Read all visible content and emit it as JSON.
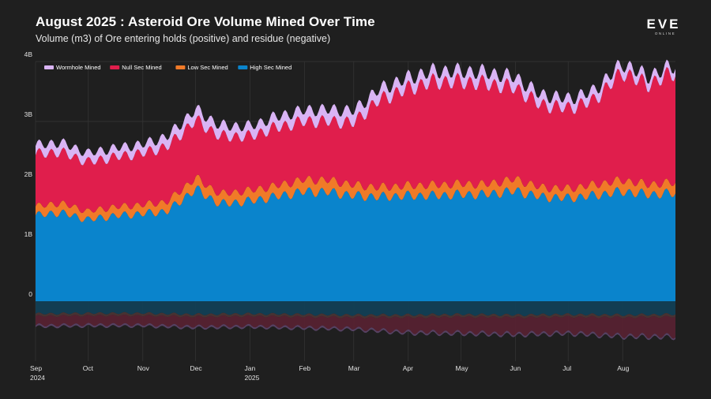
{
  "title": "August 2025 : Asteroid Ore Volume Mined Over Time",
  "subtitle": "Volume (m3) of Ore entering holds (positive) and residue (negative)",
  "logo": {
    "text": "EVE",
    "subtext": "ONLINE",
    "icon": "eve-online-logo"
  },
  "colors": {
    "background": "#1f1f1f",
    "high_sec": "#0a84cc",
    "low_sec": "#f07a28",
    "null_sec": "#e01e4c",
    "wormhole": "#d9b4f5",
    "residue_high": "#123f55",
    "residue_low": "#4a3434",
    "residue_null": "#562232",
    "residue_wormhole": "#5a4366"
  },
  "chart_data": {
    "type": "area",
    "stacked": true,
    "start_date": "2024-09-01",
    "end_date": "2025-08-31",
    "ylim": [
      -1,
      4
    ],
    "yticks": [
      {
        "value": 4,
        "label": "4B"
      },
      {
        "value": 3,
        "label": "3B"
      },
      {
        "value": 2,
        "label": "2B"
      },
      {
        "value": 1,
        "label": "1B"
      },
      {
        "value": 0,
        "label": "0"
      }
    ],
    "xticks": [
      {
        "date": "2024-09-01",
        "label": "Sep",
        "sublabel": "2024"
      },
      {
        "date": "2024-10-01",
        "label": "Oct",
        "sublabel": ""
      },
      {
        "date": "2024-11-01",
        "label": "Nov",
        "sublabel": ""
      },
      {
        "date": "2024-12-01",
        "label": "Dec",
        "sublabel": ""
      },
      {
        "date": "2025-01-01",
        "label": "Jan",
        "sublabel": "2025"
      },
      {
        "date": "2025-02-01",
        "label": "Feb",
        "sublabel": ""
      },
      {
        "date": "2025-03-01",
        "label": "Mar",
        "sublabel": ""
      },
      {
        "date": "2025-04-01",
        "label": "Apr",
        "sublabel": ""
      },
      {
        "date": "2025-05-01",
        "label": "May",
        "sublabel": ""
      },
      {
        "date": "2025-06-01",
        "label": "Jun",
        "sublabel": ""
      },
      {
        "date": "2025-07-01",
        "label": "Jul",
        "sublabel": ""
      },
      {
        "date": "2025-08-01",
        "label": "Aug",
        "sublabel": ""
      }
    ],
    "legend": [
      {
        "name": "Wormhole Mined",
        "color": "#d9b4f5"
      },
      {
        "name": "Null Sec Mined",
        "color": "#e01e4c"
      },
      {
        "name": "Low Sec Mined",
        "color": "#f07a28"
      },
      {
        "name": "High Sec Mined",
        "color": "#0a84cc"
      }
    ],
    "legend_position": "top-left",
    "grid": true,
    "series": [
      {
        "name": "High Sec Mined",
        "color": "#0a84cc",
        "x": [
          "2024-09-01",
          "2024-09-15",
          "2024-10-01",
          "2024-10-15",
          "2024-11-01",
          "2024-11-15",
          "2024-12-01",
          "2024-12-15",
          "2025-01-01",
          "2025-01-15",
          "2025-02-01",
          "2025-02-15",
          "2025-03-01",
          "2025-03-15",
          "2025-04-01",
          "2025-04-15",
          "2025-05-01",
          "2025-05-15",
          "2025-06-01",
          "2025-06-15",
          "2025-07-01",
          "2025-07-15",
          "2025-08-01",
          "2025-08-15",
          "2025-08-31"
        ],
        "values": [
          1.43,
          1.48,
          1.36,
          1.42,
          1.46,
          1.5,
          1.87,
          1.62,
          1.67,
          1.74,
          1.83,
          1.82,
          1.76,
          1.74,
          1.76,
          1.76,
          1.78,
          1.78,
          1.84,
          1.74,
          1.72,
          1.76,
          1.83,
          1.78,
          1.8
        ]
      },
      {
        "name": "Low Sec Mined",
        "color": "#f07a28",
        "x": [
          "2024-09-01",
          "2024-09-15",
          "2024-10-01",
          "2024-10-15",
          "2024-11-01",
          "2024-11-15",
          "2024-12-01",
          "2024-12-15",
          "2025-01-01",
          "2025-01-15",
          "2025-02-01",
          "2025-02-15",
          "2025-03-01",
          "2025-03-15",
          "2025-04-01",
          "2025-04-15",
          "2025-05-01",
          "2025-05-15",
          "2025-06-01",
          "2025-06-15",
          "2025-07-01",
          "2025-07-15",
          "2025-08-01",
          "2025-08-15",
          "2025-08-31"
        ],
        "values": [
          0.15,
          0.16,
          0.14,
          0.15,
          0.15,
          0.16,
          0.19,
          0.17,
          0.18,
          0.18,
          0.2,
          0.2,
          0.18,
          0.16,
          0.17,
          0.18,
          0.18,
          0.17,
          0.2,
          0.16,
          0.16,
          0.18,
          0.19,
          0.17,
          0.18
        ]
      },
      {
        "name": "Null Sec Mined",
        "color": "#e01e4c",
        "x": [
          "2024-09-01",
          "2024-09-15",
          "2024-10-01",
          "2024-10-15",
          "2024-11-01",
          "2024-11-15",
          "2024-12-01",
          "2024-12-15",
          "2025-01-01",
          "2025-01-15",
          "2025-02-01",
          "2025-02-15",
          "2025-03-01",
          "2025-03-15",
          "2025-04-01",
          "2025-04-15",
          "2025-05-01",
          "2025-05-15",
          "2025-06-01",
          "2025-06-15",
          "2025-07-01",
          "2025-07-15",
          "2025-08-01",
          "2025-08-15",
          "2025-08-31"
        ],
        "values": [
          0.87,
          0.85,
          0.82,
          0.83,
          0.86,
          0.92,
          0.96,
          0.96,
          0.9,
          0.97,
          0.97,
          0.98,
          1.04,
          1.45,
          1.62,
          1.72,
          1.7,
          1.68,
          1.52,
          1.38,
          1.34,
          1.4,
          1.8,
          1.66,
          1.84
        ]
      },
      {
        "name": "Wormhole Mined",
        "color": "#d9b4f5",
        "x": [
          "2024-09-01",
          "2024-09-15",
          "2024-10-01",
          "2024-10-15",
          "2024-11-01",
          "2024-11-15",
          "2024-12-01",
          "2024-12-15",
          "2025-01-01",
          "2025-01-15",
          "2025-02-01",
          "2025-02-15",
          "2025-03-01",
          "2025-03-15",
          "2025-04-01",
          "2025-04-15",
          "2025-05-01",
          "2025-05-15",
          "2025-06-01",
          "2025-06-15",
          "2025-07-01",
          "2025-07-15",
          "2025-08-01",
          "2025-08-15",
          "2025-08-31"
        ],
        "values": [
          0.15,
          0.16,
          0.15,
          0.15,
          0.15,
          0.17,
          0.18,
          0.18,
          0.17,
          0.18,
          0.19,
          0.2,
          0.2,
          0.18,
          0.18,
          0.18,
          0.18,
          0.19,
          0.18,
          0.17,
          0.16,
          0.16,
          0.15,
          0.14,
          0.12
        ]
      }
    ],
    "residue_series": [
      {
        "name": "High Sec Residue",
        "color": "#123f55",
        "x": [
          "2024-09-01",
          "2024-10-01",
          "2024-11-01",
          "2024-12-01",
          "2025-01-01",
          "2025-02-01",
          "2025-03-01",
          "2025-04-01",
          "2025-05-01",
          "2025-06-01",
          "2025-07-01",
          "2025-08-01",
          "2025-08-31"
        ],
        "values": [
          -0.21,
          -0.2,
          -0.2,
          -0.22,
          -0.21,
          -0.22,
          -0.23,
          -0.23,
          -0.22,
          -0.23,
          -0.22,
          -0.23,
          -0.22
        ]
      },
      {
        "name": "Low Sec Residue",
        "color": "#4a3434",
        "x": [
          "2024-09-01",
          "2024-10-01",
          "2024-11-01",
          "2024-12-01",
          "2025-01-01",
          "2025-02-01",
          "2025-03-01",
          "2025-04-01",
          "2025-05-01",
          "2025-06-01",
          "2025-07-01",
          "2025-08-01",
          "2025-08-31"
        ],
        "values": [
          -0.04,
          -0.04,
          -0.04,
          -0.04,
          -0.04,
          -0.04,
          -0.04,
          -0.04,
          -0.04,
          -0.04,
          -0.04,
          -0.04,
          -0.04
        ]
      },
      {
        "name": "Null Sec Residue",
        "color": "#562232",
        "x": [
          "2024-09-01",
          "2024-10-01",
          "2024-11-01",
          "2024-12-01",
          "2025-01-01",
          "2025-02-01",
          "2025-03-01",
          "2025-04-01",
          "2025-05-01",
          "2025-06-01",
          "2025-07-01",
          "2025-08-01",
          "2025-08-31"
        ],
        "values": [
          -0.15,
          -0.15,
          -0.15,
          -0.16,
          -0.16,
          -0.17,
          -0.18,
          -0.24,
          -0.26,
          -0.27,
          -0.26,
          -0.3,
          -0.32
        ]
      },
      {
        "name": "Wormhole Residue",
        "color": "#5a4366",
        "x": [
          "2024-09-01",
          "2024-10-01",
          "2024-11-01",
          "2024-12-01",
          "2025-01-01",
          "2025-02-01",
          "2025-03-01",
          "2025-04-01",
          "2025-05-01",
          "2025-06-01",
          "2025-07-01",
          "2025-08-01",
          "2025-08-31"
        ],
        "values": [
          -0.03,
          -0.03,
          -0.03,
          -0.03,
          -0.03,
          -0.03,
          -0.03,
          -0.03,
          -0.03,
          -0.03,
          -0.03,
          -0.03,
          -0.03
        ]
      }
    ]
  }
}
